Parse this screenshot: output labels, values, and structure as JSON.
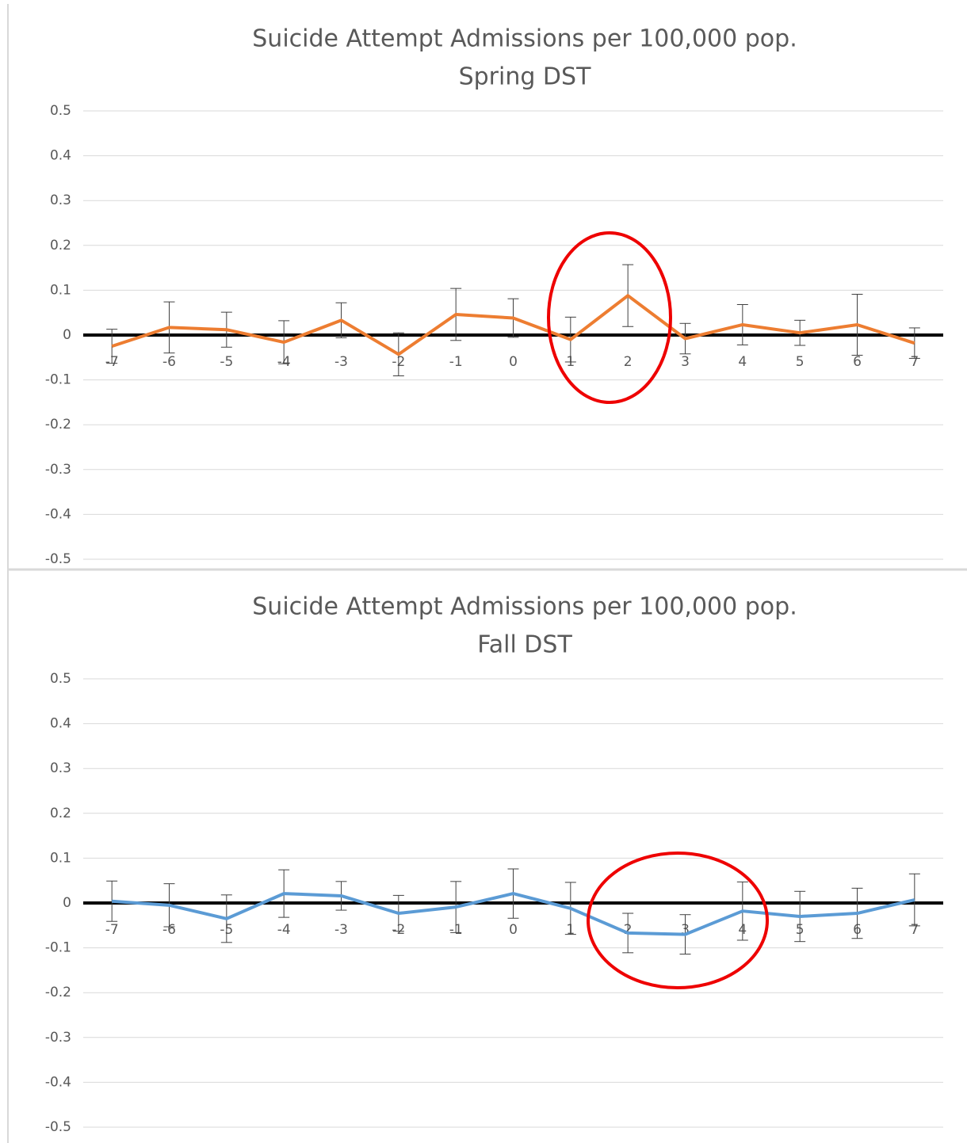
{
  "chart_data": [
    {
      "type": "line",
      "title": "Suicide Attempt Admissions per 100,000 pop.",
      "subtitle": "Spring DST",
      "categories": [
        "-7",
        "-6",
        "-5",
        "-4",
        "-3",
        "-2",
        "-1",
        "0",
        "1",
        "2",
        "3",
        "4",
        "5",
        "6",
        "7"
      ],
      "series": [
        {
          "color": "#ed7d31",
          "values": [
            -0.025,
            0.017,
            0.012,
            -0.016,
            0.033,
            -0.043,
            0.046,
            0.038,
            -0.01,
            0.088,
            -0.008,
            0.023,
            0.005,
            0.023,
            -0.018
          ],
          "errors": [
            0.038,
            0.057,
            0.039,
            0.048,
            0.039,
            0.048,
            0.058,
            0.043,
            0.05,
            0.069,
            0.034,
            0.045,
            0.028,
            0.068,
            0.034
          ]
        }
      ],
      "ylim": [
        -0.5,
        0.5
      ],
      "yticks": [
        0.5,
        0.4,
        0.3,
        0.2,
        0.1,
        0,
        -0.1,
        -0.2,
        -0.3,
        -0.4,
        -0.5
      ],
      "grid": true
    },
    {
      "type": "line",
      "title": "Suicide Attempt Admissions per 100,000 pop.",
      "subtitle": "Fall DST",
      "categories": [
        "-7",
        "-6",
        "-5",
        "-4",
        "-3",
        "-2",
        "-1",
        "0",
        "1",
        "2",
        "3",
        "4",
        "5",
        "6",
        "7"
      ],
      "series": [
        {
          "color": "#5b9bd5",
          "values": [
            0.004,
            -0.005,
            -0.035,
            0.021,
            0.016,
            -0.023,
            -0.009,
            0.021,
            -0.012,
            -0.067,
            -0.07,
            -0.018,
            -0.03,
            -0.023,
            0.007
          ],
          "errors": [
            0.045,
            0.048,
            0.053,
            0.053,
            0.032,
            0.04,
            0.057,
            0.055,
            0.058,
            0.044,
            0.044,
            0.065,
            0.056,
            0.056,
            0.058
          ]
        }
      ],
      "ylim": [
        -0.5,
        0.5
      ],
      "yticks": [
        0.5,
        0.4,
        0.3,
        0.2,
        0.1,
        0,
        -0.1,
        -0.2,
        -0.3,
        -0.4,
        -0.5
      ],
      "grid": true
    }
  ]
}
